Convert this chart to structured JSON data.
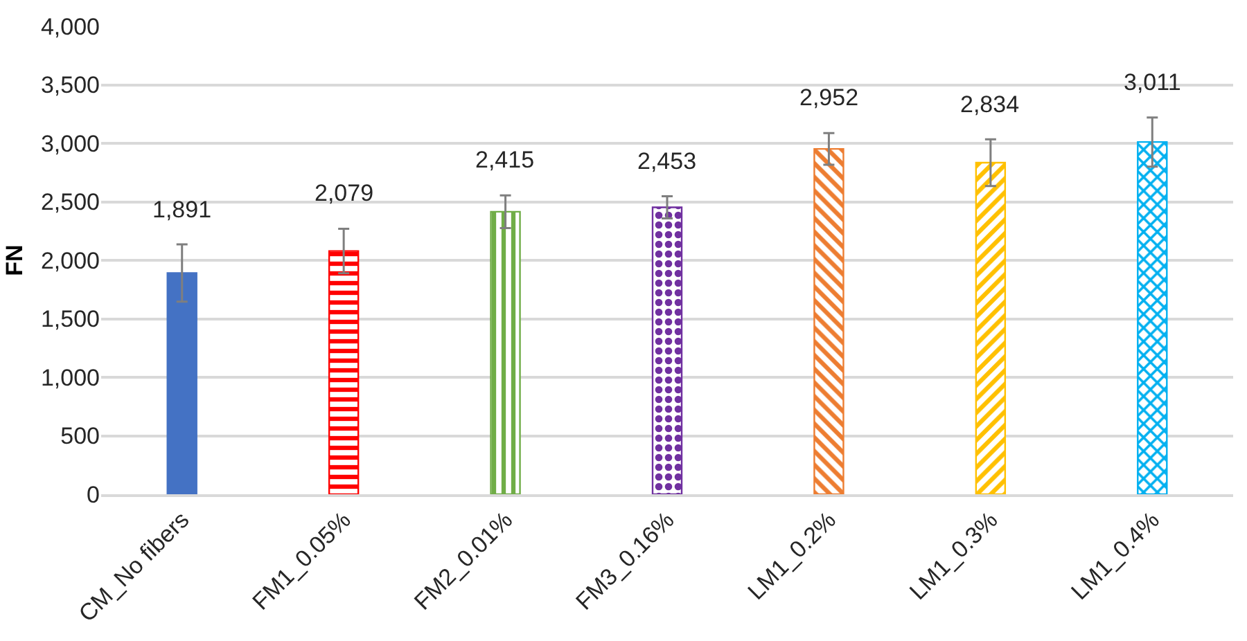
{
  "chart_data": {
    "type": "bar",
    "ylabel": "FN",
    "categories": [
      "CM_No fibers",
      "FM1_0.05%",
      "FM2_0.01%",
      "FM3_0.16%",
      "LM1_0.2%",
      "LM1_0.3%",
      "LM1_0.4%"
    ],
    "values": [
      1891,
      2079,
      2415,
      2453,
      2952,
      2834,
      3011
    ],
    "errors": [
      245,
      190,
      140,
      95,
      135,
      200,
      210
    ],
    "colors": [
      "#4472c4",
      "#ff0000",
      "#70ad47",
      "#7030a0",
      "#ed7d31",
      "#ffc000",
      "#00b0f0"
    ],
    "ylim": [
      0,
      4000
    ],
    "yticks": [
      {
        "value": 0,
        "label": "0"
      },
      {
        "value": 500,
        "label": "500"
      },
      {
        "value": 1000,
        "label": "1,000"
      },
      {
        "value": 1500,
        "label": "1,500"
      },
      {
        "value": 2000,
        "label": "2,000"
      },
      {
        "value": 2500,
        "label": "2,500"
      },
      {
        "value": 3000,
        "label": "3,000"
      },
      {
        "value": 3500,
        "label": "3,500"
      },
      {
        "value": 4000,
        "label": "4,000"
      }
    ],
    "value_labels": [
      "1,891",
      "2,079",
      "2,415",
      "2,453",
      "2,952",
      "2,834",
      "3,011"
    ],
    "grid": "y"
  }
}
